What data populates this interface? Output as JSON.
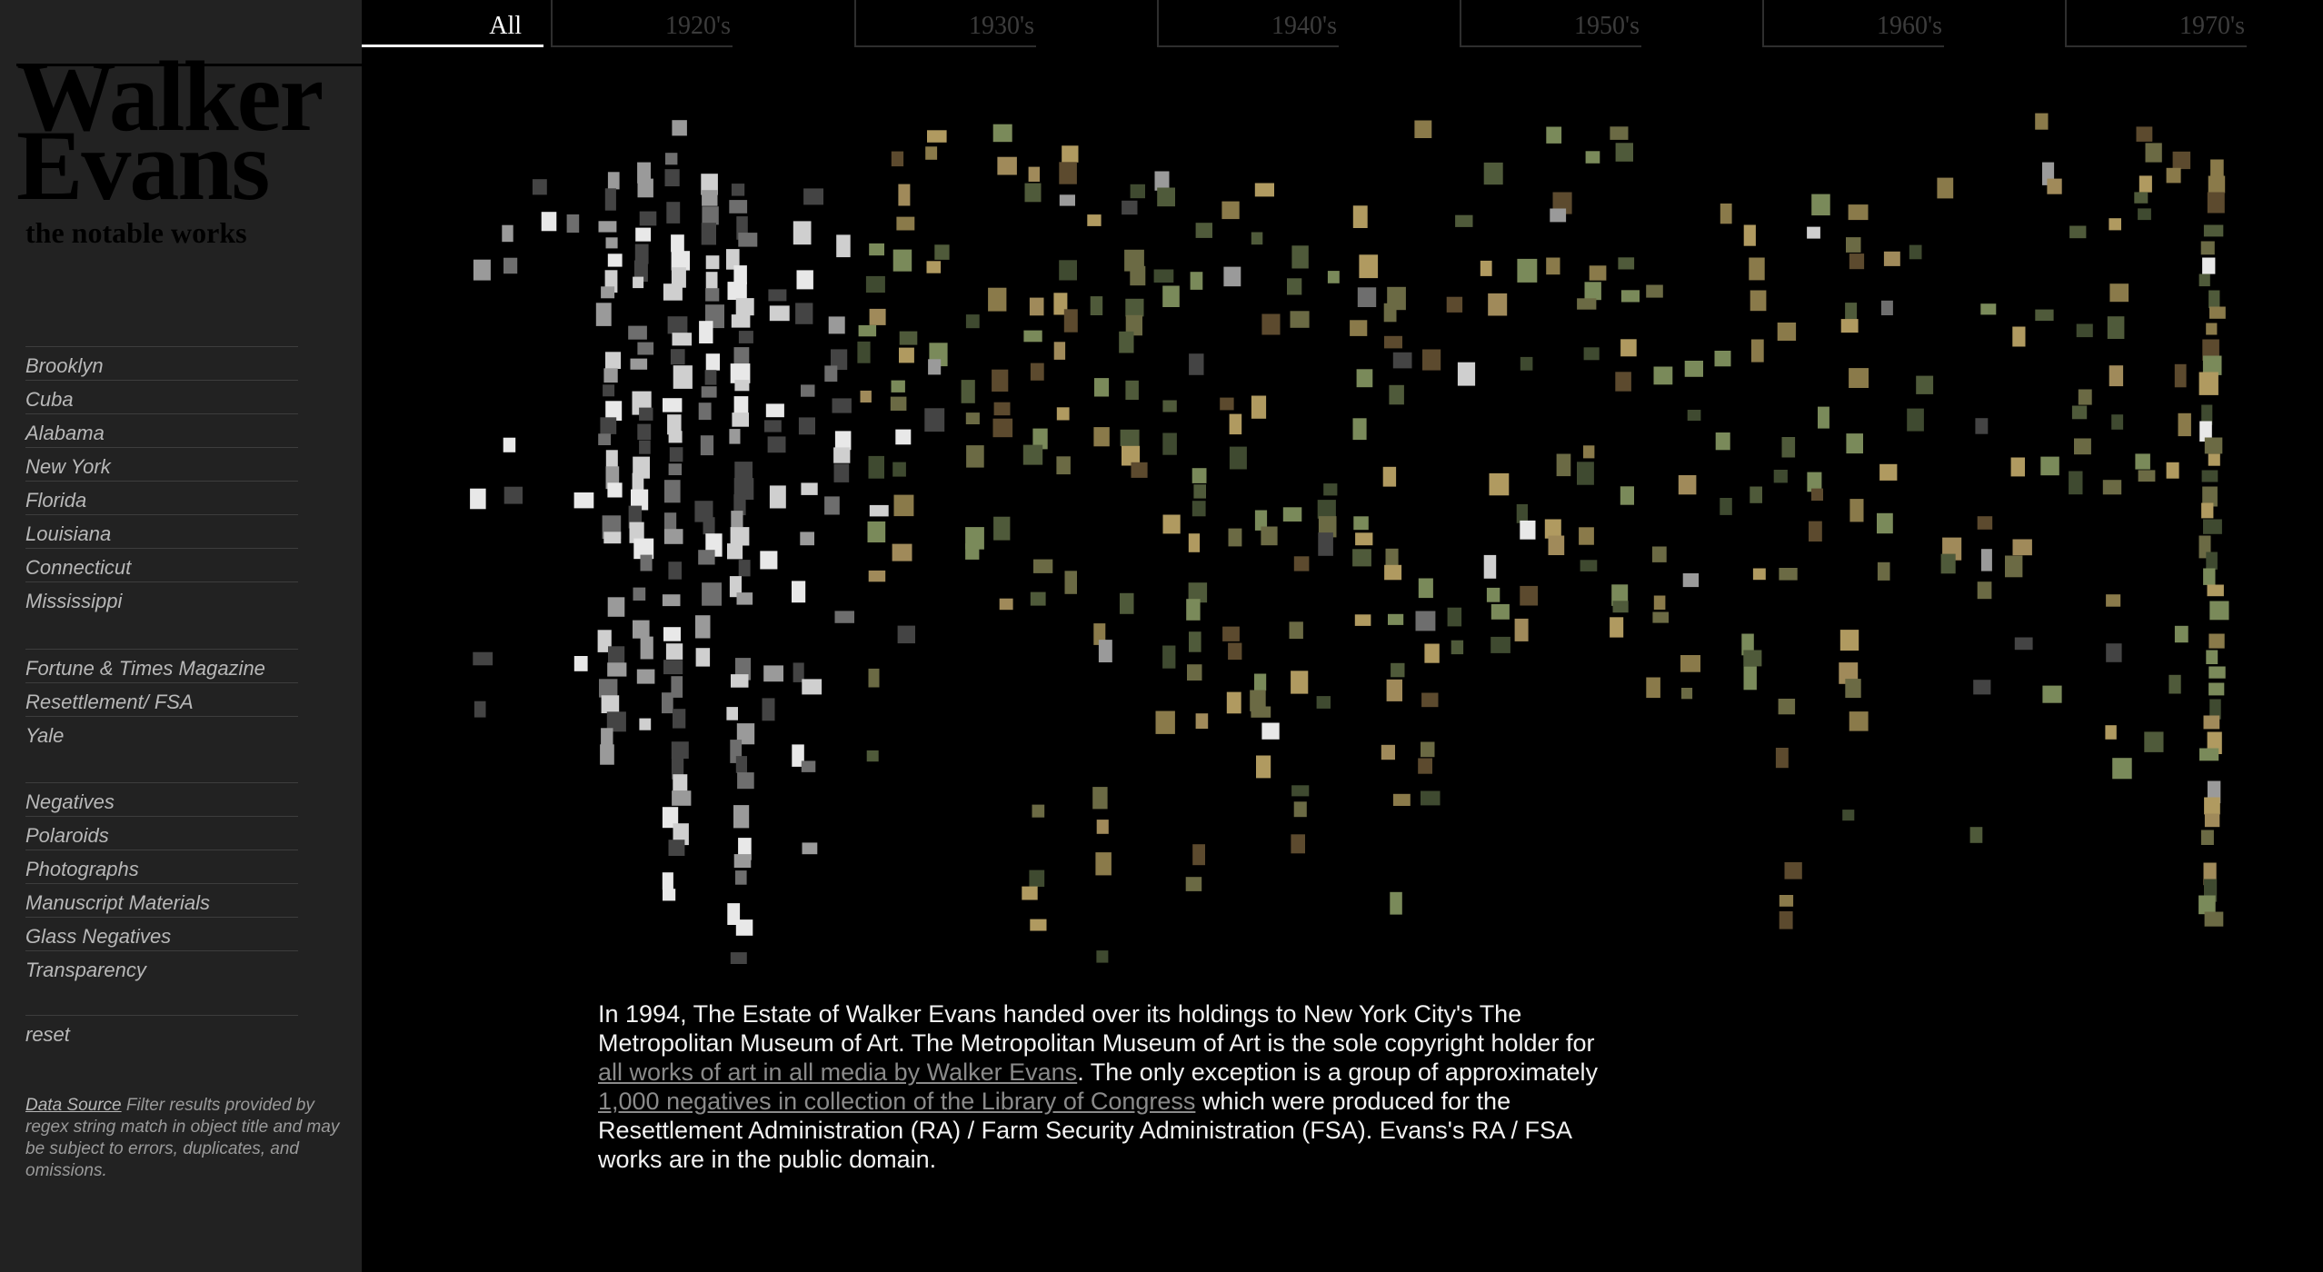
{
  "sidebar": {
    "title_line1": "Walker",
    "title_line2": "Evans",
    "subtitle": "the notable works",
    "places": [
      "Brooklyn",
      "Cuba",
      "Alabama",
      "New York",
      "Florida",
      "Louisiana",
      "Connecticut",
      "Mississippi"
    ],
    "commissions": [
      "Fortune & Times Magazine",
      "Resettlement/ FSA",
      "Yale"
    ],
    "media": [
      "Negatives",
      "Polaroids",
      "Photographs",
      "Manuscript Materials",
      "Glass Negatives",
      "Transparency"
    ],
    "reset": "reset",
    "data_source_link": "Data Source",
    "data_source_note": " Filter results provided by regex string match in object title and may be subject to errors, duplicates, and omissions."
  },
  "tabs": [
    {
      "label": "All",
      "active": true
    },
    {
      "label": "1920's",
      "active": false
    },
    {
      "label": "1930's",
      "active": false
    },
    {
      "label": "1940's",
      "active": false
    },
    {
      "label": "1950's",
      "active": false
    },
    {
      "label": "1960's",
      "active": false
    },
    {
      "label": "1970's",
      "active": false
    }
  ],
  "about": {
    "p1": "In 1994, The Estate of Walker Evans handed over its holdings to New York City's The Metropolitan Museum of Art. The Metropolitan Museum of Art is the sole copyright holder for ",
    "link1": "all works of art in all media by Walker Evans",
    "p2": ". The only exception is a group of approximately ",
    "link2": "1,000 negatives in collection of the Library of Congress",
    "p3": " which were produced for the Resettlement Administration (RA) / Farm Security Administration (FSA). Evans's RA / FSA works are in the public domain."
  },
  "colors": {
    "background": "#000000",
    "sidebar": "#222222",
    "nav_text": "#b8b8b8",
    "active_tab": "#ffffff",
    "link": "#8a8a8a"
  }
}
